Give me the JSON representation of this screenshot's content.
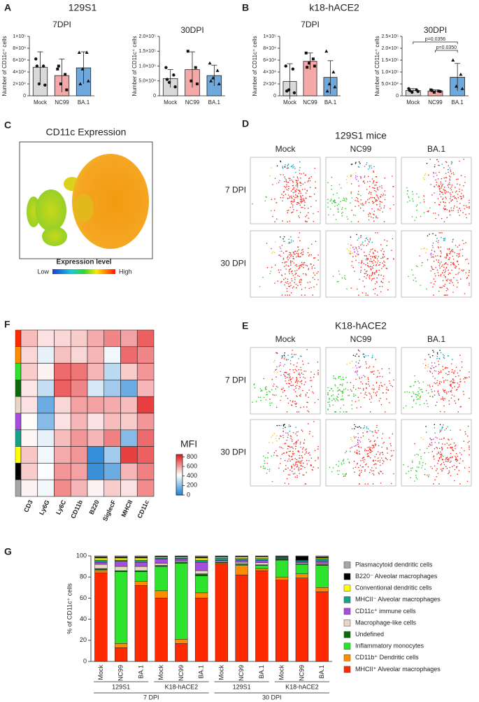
{
  "chart_data": [
    {
      "type": "bar",
      "panel": "A",
      "group_title": "129S1",
      "title": "7DPI",
      "ylabel": "Number of CD11c⁺ cells",
      "categories": [
        "Mock",
        "NC99",
        "BA.1"
      ],
      "colors": [
        "#d9d9d9",
        "#f4a9a8",
        "#6fa8dc"
      ],
      "markers": [
        "circle",
        "square",
        "triangle"
      ],
      "values": [
        48000,
        34000,
        47000
      ],
      "errors": [
        26000,
        28000,
        27000
      ],
      "points": [
        [
          62000,
          50000,
          20000,
          18000,
          50000
        ],
        [
          45000,
          36000,
          20000,
          10000,
          50000
        ],
        [
          73000,
          73000,
          45000,
          25000,
          20000
        ]
      ],
      "ylim": [
        0,
        100000
      ],
      "yticks": [
        0,
        {
          "value": 20000,
          "label": "2×10⁴"
        },
        {
          "value": 40000,
          "label": "4×10⁴"
        },
        {
          "value": 60000,
          "label": "6×10⁴"
        },
        {
          "value": 80000,
          "label": "8×10⁴"
        },
        {
          "value": 100000,
          "label": "1×10⁵"
        }
      ]
    },
    {
      "type": "bar",
      "title": "30DPI",
      "ylabel": "Number of CD11c⁺ cells",
      "categories": [
        "Mock",
        "NC99",
        "BA.1"
      ],
      "colors": [
        "#d9d9d9",
        "#f4a9a8",
        "#6fa8dc"
      ],
      "markers": [
        "circle",
        "square",
        "triangle"
      ],
      "values": [
        58000,
        88000,
        68000
      ],
      "errors": [
        30000,
        60000,
        35000
      ],
      "points": [
        [
          95000,
          70000,
          45000,
          30000,
          55000
        ],
        [
          150000,
          95000,
          50000,
          40000
        ],
        [
          110000,
          85000,
          60000,
          40000,
          50000
        ]
      ],
      "ylim": [
        0,
        200000
      ],
      "yticks": [
        0,
        {
          "value": 50000,
          "label": "5.0×10⁴"
        },
        {
          "value": 100000,
          "label": "1.0×10⁵"
        },
        {
          "value": 150000,
          "label": "1.5×10⁵"
        },
        {
          "value": 200000,
          "label": "2.0×10⁵"
        }
      ]
    },
    {
      "type": "bar",
      "panel": "B",
      "group_title": "k18-hACE2",
      "title": "7DPI",
      "ylabel": "Number of CD11c⁺ cells",
      "categories": [
        "Mock",
        "NC99",
        "BA.1"
      ],
      "colors": [
        "#d9d9d9",
        "#f4a9a8",
        "#6fa8dc"
      ],
      "markers": [
        "circle",
        "square",
        "triangle"
      ],
      "values": [
        24000,
        58000,
        31000
      ],
      "errors": [
        30000,
        14000,
        28000
      ],
      "points": [
        [
          50000,
          45000,
          10000,
          5000,
          8000
        ],
        [
          72000,
          62000,
          55000,
          50000,
          48000
        ],
        [
          75000,
          40000,
          20000,
          15000,
          8000
        ]
      ],
      "ylim": [
        0,
        100000
      ],
      "yticks": [
        0,
        {
          "value": 20000,
          "label": "2×10⁴"
        },
        {
          "value": 40000,
          "label": "4×10⁴"
        },
        {
          "value": 60000,
          "label": "6×10⁴"
        },
        {
          "value": 80000,
          "label": "8×10⁴"
        },
        {
          "value": 100000,
          "label": "1×10⁵"
        }
      ]
    },
    {
      "type": "bar",
      "title": "30DPI",
      "ylabel": "Number of CD11c⁺ cells",
      "categories": [
        "Mock",
        "NC99",
        "BA.1"
      ],
      "colors": [
        "#d9d9d9",
        "#f4a9a8",
        "#6fa8dc"
      ],
      "markers": [
        "circle",
        "square",
        "triangle"
      ],
      "values": [
        22000,
        20000,
        78000
      ],
      "errors": [
        8000,
        5000,
        58000
      ],
      "points": [
        [
          30000,
          25000,
          15000,
          18000,
          22000
        ],
        [
          25000,
          20000,
          15000,
          18000,
          22000
        ],
        [
          150000,
          90000,
          40000,
          30000
        ]
      ],
      "ylim": [
        0,
        250000
      ],
      "yticks": [
        0,
        {
          "value": 50000,
          "label": "5.0×10⁴"
        },
        {
          "value": 100000,
          "label": "1.0×10⁵"
        },
        {
          "value": 150000,
          "label": "1.5×10⁵"
        },
        {
          "value": 200000,
          "label": "2.0×10⁵"
        },
        {
          "value": 250000,
          "label": "2.5×10⁵"
        }
      ],
      "annotations": [
        "p=0.0356",
        "p=0.0350"
      ]
    },
    {
      "type": "embedding",
      "panel": "C",
      "title": "CD11c Expression",
      "colorbar_title": "Expression level",
      "colorbar_labels": [
        "Low",
        "High"
      ]
    },
    {
      "type": "embedding_grid",
      "panel": "D",
      "title": "129S1 mice",
      "columns": [
        "Mock",
        "NC99",
        "BA.1"
      ],
      "rows": [
        "7 DPI",
        "30 DPI"
      ]
    },
    {
      "type": "embedding_grid",
      "panel": "E",
      "title": "K18-hACE2",
      "columns": [
        "Mock",
        "NC99",
        "BA.1"
      ],
      "rows": [
        "7 DPI",
        "30 DPI"
      ]
    },
    {
      "type": "heatmap",
      "panel": "F",
      "columns": [
        "CD3",
        "Ly6G",
        "Ly6C",
        "CD11b",
        "B220",
        "SiglecF",
        "MHCII",
        "CD11c"
      ],
      "row_colors": [
        "#ff2a00",
        "#ff8c00",
        "#2ee32e",
        "#0b6b0b",
        "#e8d5c4",
        "#a64dde",
        "#14a38a",
        "#ffff00",
        "#000000",
        "#a6a6a6"
      ],
      "values": [
        [
          550,
          480,
          500,
          520,
          580,
          650,
          600,
          720
        ],
        [
          500,
          380,
          540,
          500,
          560,
          400,
          700,
          650
        ],
        [
          520,
          450,
          700,
          680,
          560,
          300,
          520,
          620
        ],
        [
          470,
          320,
          720,
          650,
          350,
          250,
          150,
          560
        ],
        [
          480,
          150,
          500,
          600,
          600,
          580,
          550,
          780
        ],
        [
          430,
          200,
          480,
          560,
          480,
          550,
          520,
          620
        ],
        [
          440,
          380,
          550,
          620,
          560,
          660,
          200,
          700
        ],
        [
          530,
          400,
          580,
          620,
          50,
          250,
          780,
          720
        ],
        [
          520,
          420,
          620,
          600,
          60,
          150,
          560,
          660
        ],
        [
          450,
          400,
          640,
          560,
          450,
          520,
          480,
          640
        ]
      ],
      "zlim": [
        0,
        850
      ],
      "colorscale": [
        "#1a7fd4",
        "#ffffff",
        "#e31a1c"
      ],
      "colorbar_title": "MFI",
      "colorbar_ticks": [
        0,
        200,
        400,
        600,
        800
      ]
    },
    {
      "type": "stacked_bar",
      "panel": "G",
      "ylabel": "% of CD11c⁺ cells",
      "categories": [
        "Mock",
        "NC99",
        "BA.1",
        "Mock",
        "NC99",
        "BA.1",
        "Mock",
        "NC99",
        "BA.1",
        "Mock",
        "NC99",
        "BA.1"
      ],
      "groups": [
        "129S1",
        "K18-hACE2",
        "129S1",
        "K18-hACE2"
      ],
      "supergroups": [
        "7 DPI",
        "30 DPI"
      ],
      "ylim": [
        0,
        100
      ],
      "yticks": [
        0,
        20,
        40,
        60,
        80,
        100
      ],
      "series": [
        {
          "name": "MHCII⁺ Alveolar macrophages",
          "color": "#ff2a00",
          "values": [
            84,
            13,
            72,
            60,
            17,
            60,
            92,
            82,
            86,
            77,
            79,
            66
          ]
        },
        {
          "name": "CD11b⁺ Dendritic cells",
          "color": "#ff8c00",
          "values": [
            2,
            4,
            4,
            7,
            4,
            5,
            1,
            9,
            2,
            3,
            4,
            4
          ]
        },
        {
          "name": "Inflammatory monocytes",
          "color": "#2ee32e",
          "values": [
            1,
            68,
            9,
            23,
            72,
            16,
            0.5,
            1,
            3,
            16,
            9,
            21
          ]
        },
        {
          "name": "Undefined",
          "color": "#0b6b0b",
          "values": [
            1,
            1,
            1,
            1,
            1,
            2,
            0.5,
            0.5,
            0.5,
            0.5,
            0.5,
            1
          ]
        },
        {
          "name": "Macrophage-like cells",
          "color": "#e8d5c4",
          "values": [
            4,
            4,
            4,
            2,
            1,
            3,
            1,
            1.5,
            2,
            0.5,
            1,
            1
          ]
        },
        {
          "name": "CD11c⁺ immune cells",
          "color": "#a64dde",
          "values": [
            2,
            5,
            4,
            4,
            2,
            8,
            1,
            2,
            2,
            0.5,
            1,
            2
          ]
        },
        {
          "name": "MHCII⁻ Alveolar macrophages",
          "color": "#14a38a",
          "values": [
            2,
            1,
            2,
            1,
            1,
            2,
            2,
            1.5,
            2,
            1,
            1,
            2
          ]
        },
        {
          "name": "Conventional dendritic cells",
          "color": "#ffff00",
          "values": [
            2,
            2,
            2,
            1,
            1,
            2,
            1,
            1.5,
            1.5,
            0.5,
            0.5,
            1
          ]
        },
        {
          "name": "B220⁻ Alveolar macrophages",
          "color": "#000000",
          "values": [
            1,
            1,
            1,
            0.5,
            0.5,
            1,
            0.5,
            0.5,
            0.5,
            0.5,
            3.5,
            1
          ]
        },
        {
          "name": "Plasmacytoid dendritic cells",
          "color": "#a6a6a6",
          "values": [
            1,
            1,
            1,
            0.5,
            0.5,
            1,
            0.5,
            0.5,
            0.5,
            0.5,
            0.5,
            1
          ]
        }
      ]
    }
  ]
}
